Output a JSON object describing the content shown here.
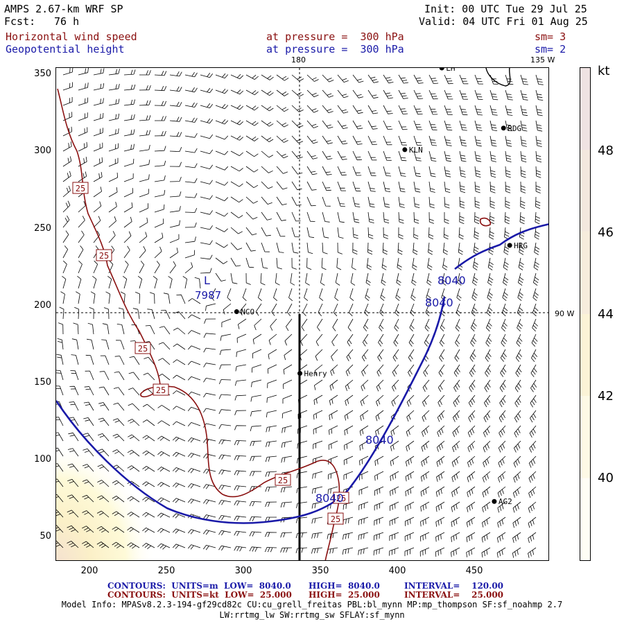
{
  "header": {
    "model": "AMPS 2.67-km WRF SP",
    "fcst_label": "Fcst:",
    "fcst_value": "76 h",
    "init": "Init: 00 UTC Tue 29 Jul 25",
    "valid": "Valid: 04 UTC Fri 01 Aug 25",
    "field1": "Horizontal wind speed",
    "field1_level": "at pressure =  300 hPa",
    "field1_sm": "sm= 3",
    "field2": "Geopotential height",
    "field2_level": "at pressure =  300 hPa",
    "field2_sm": "sm= 2"
  },
  "lon_labels": {
    "top_180": "180",
    "top_135w": "135 W",
    "right_90w": "90 W"
  },
  "axes": {
    "x_ticks": [
      "200",
      "250",
      "300",
      "350",
      "400",
      "450"
    ],
    "y_ticks": [
      "350",
      "300",
      "250",
      "200",
      "150",
      "100",
      "50"
    ],
    "x_range": [
      175,
      495
    ],
    "y_range": [
      33,
      353
    ]
  },
  "stations": [
    {
      "name": "KLN",
      "x": 401,
      "y": 300
    },
    {
      "name": "RDG",
      "x": 465,
      "y": 314
    },
    {
      "name": "HRG",
      "x": 469,
      "y": 238
    },
    {
      "name": "NCO",
      "x": 292,
      "y": 195
    },
    {
      "name": "Henry",
      "x": 333,
      "y": 155
    },
    {
      "name": "AG2",
      "x": 459,
      "y": 72
    },
    {
      "name": "LH",
      "x": 425,
      "y": 353
    }
  ],
  "annotations": {
    "low_label": "L",
    "low_value": "7987",
    "height_contour_label": "8040",
    "speed_contour_label": "25"
  },
  "colorbar": {
    "unit": "kt",
    "labels": [
      "48",
      "46",
      "44",
      "42",
      "40"
    ],
    "colors": [
      "#efe2e2",
      "#f3e8de",
      "#f6ecdc",
      "#fbf3d6",
      "#fdf9e5",
      "#fefdf5"
    ]
  },
  "footer": {
    "line1_a": "CONTOURS:  UNITS=m  LOW=  8040.0",
    "line1_b": "HIGH=  8040.0",
    "line1_c": "INTERVAL=    120.00",
    "line2_a": "CONTOURS:  UNITS=kt  LOW=  25.000",
    "line2_b": "HIGH=  25.000",
    "line2_c": "INTERVAL=    25.000",
    "info1": "Model Info: MPASv8.2.3-194-gf29cd82c CU:cu_grell_freitas PBL:bl_mynn MP:mp_thompson SF:sf_noahmp 2.7",
    "info2": "LW:rrtmg_lw SW:rrtmg_sw SFLAY:sf_mynn"
  },
  "colors": {
    "height_contour": "#1a1aa8",
    "speed_contour": "#8a1010",
    "station": "#000000"
  }
}
